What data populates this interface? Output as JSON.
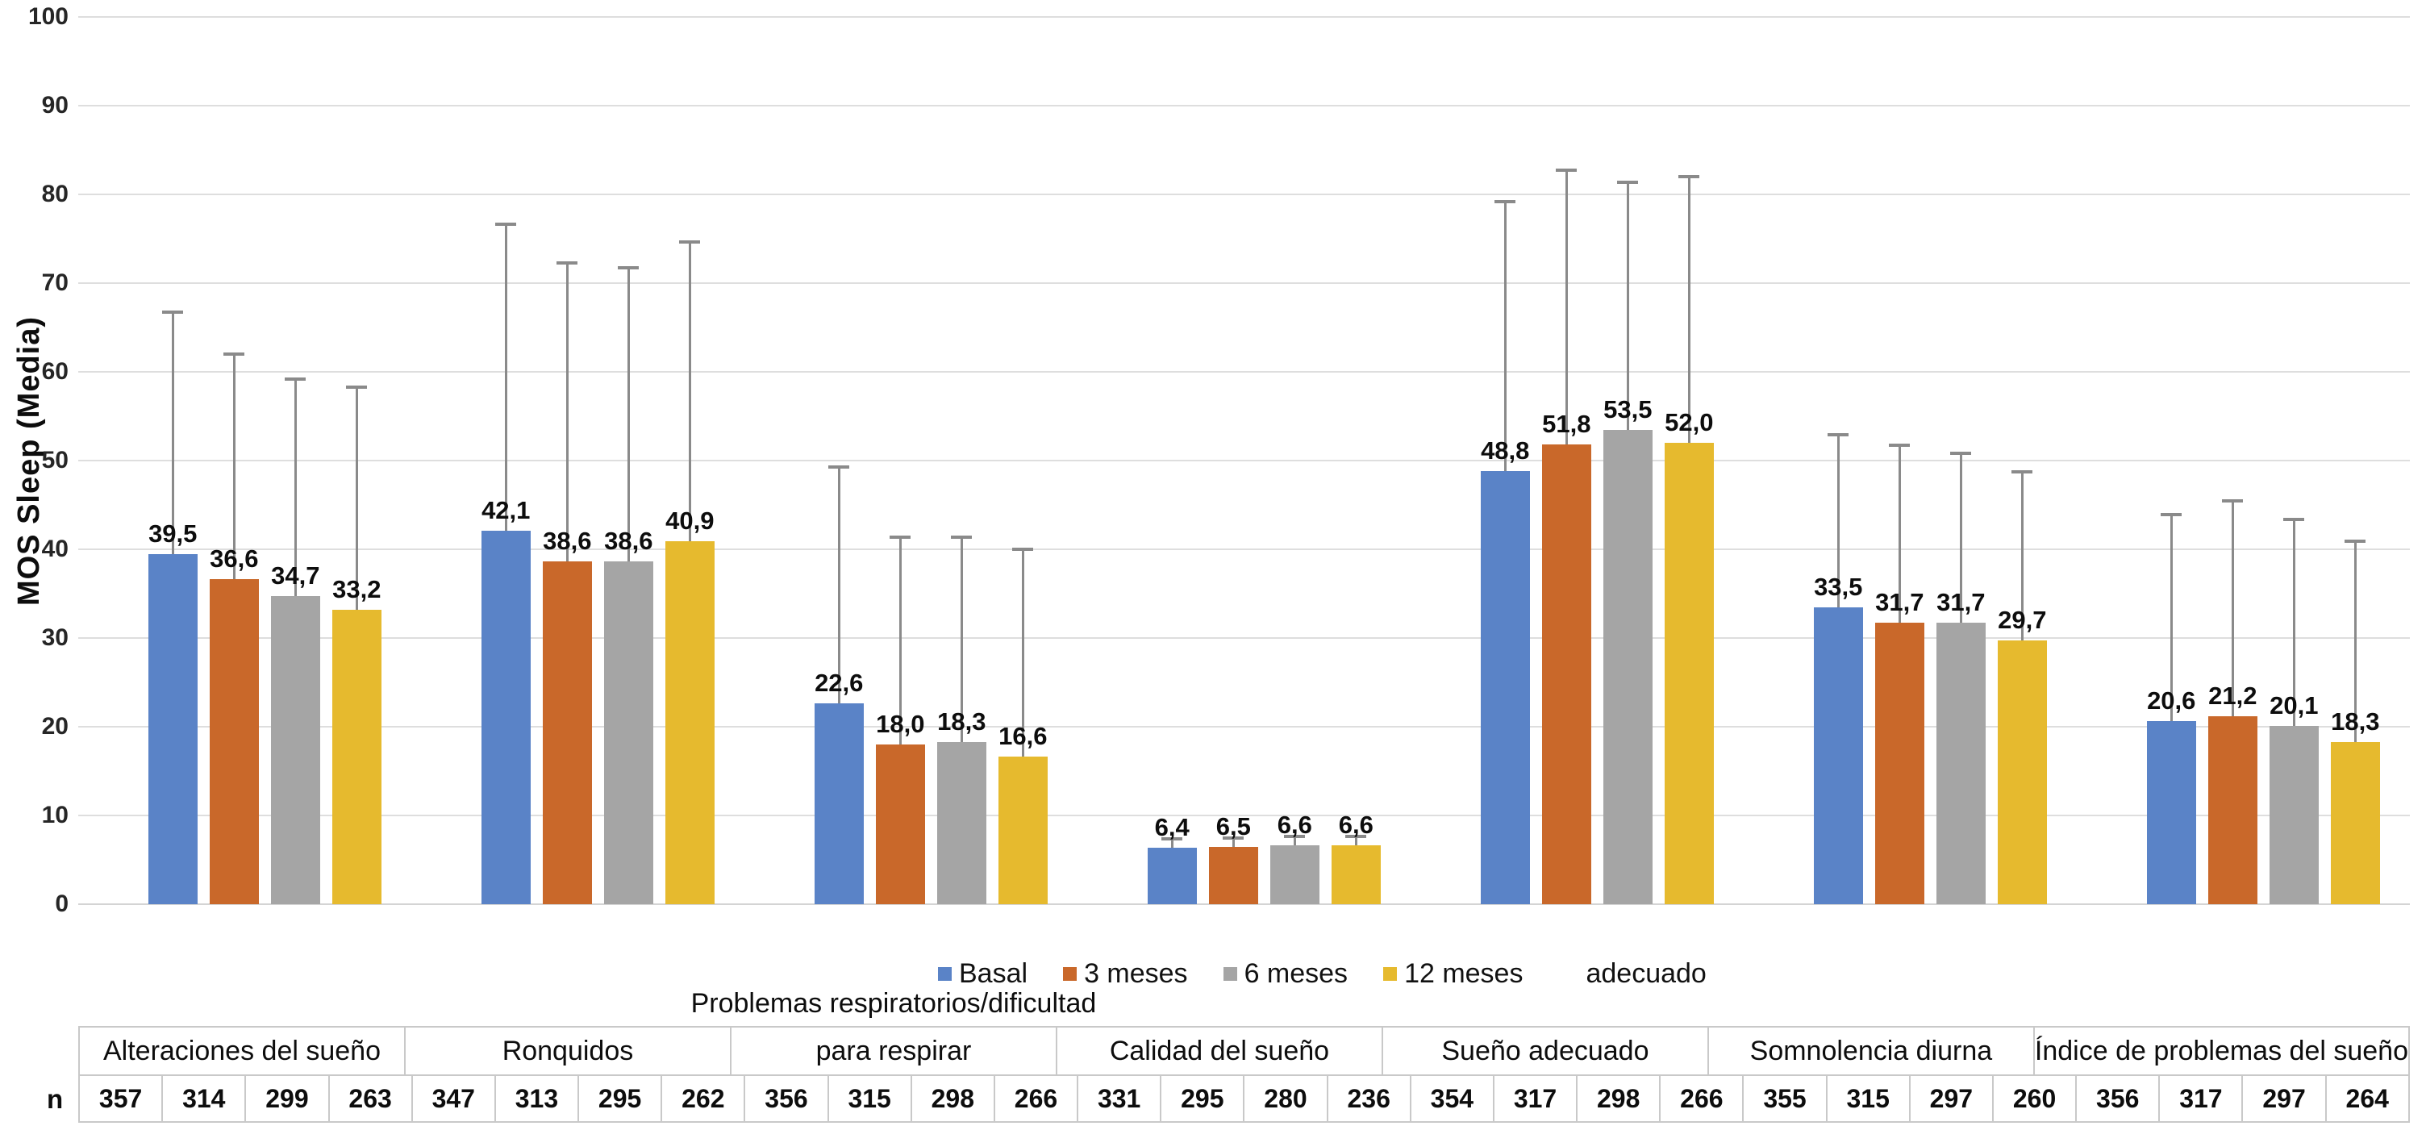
{
  "figure": {
    "y_axis_title": "MOS Sleep (Media)"
  },
  "legend": {
    "items": [
      "Basal",
      "3 meses",
      "6 meses",
      "12 meses"
    ],
    "stray_text": "adecuado"
  },
  "chart_data": {
    "type": "bar",
    "title": "",
    "xlabel": "",
    "ylabel": "MOS Sleep (Media)",
    "ylim": [
      0,
      100
    ],
    "ytick_step": 10,
    "grid": true,
    "legend_position": "bottom",
    "decimal_separator": ",",
    "error_bars": "upper-only",
    "categories": [
      "Alteraciones del sueño",
      "Ronquidos",
      "Problemas respiratorios/dificultad para respirar",
      "Calidad del sueño",
      "Sueño adecuado",
      "Somnolencia diurna",
      "Índice de problemas del sueño"
    ],
    "category_label_lines": [
      [
        "",
        "Alteraciones del sueño"
      ],
      [
        "",
        "Ronquidos"
      ],
      [
        "Problemas respiratorios/dificultad",
        "para respirar"
      ],
      [
        "",
        "Calidad del sueño"
      ],
      [
        "",
        "Sueño adecuado"
      ],
      [
        "",
        "Somnolencia diurna"
      ],
      [
        "",
        "Índice de problemas del sueño"
      ]
    ],
    "series": [
      {
        "name": "Basal",
        "color": "#5a83c7",
        "values": [
          39.5,
          42.1,
          22.6,
          6.4,
          48.8,
          33.5,
          20.6
        ],
        "error_top": [
          66.7,
          76.6,
          49.3,
          7.4,
          79.2,
          52.9,
          43.9
        ]
      },
      {
        "name": "3 meses",
        "color": "#c9682a",
        "values": [
          36.6,
          38.6,
          18.0,
          6.5,
          51.8,
          31.7,
          21.2
        ],
        "error_top": [
          62.0,
          72.3,
          41.4,
          7.5,
          82.7,
          51.7,
          45.5
        ]
      },
      {
        "name": "6 meses",
        "color": "#a5a5a5",
        "values": [
          34.7,
          38.6,
          18.3,
          6.6,
          53.5,
          31.7,
          20.1
        ],
        "error_top": [
          59.2,
          71.7,
          41.4,
          7.6,
          81.4,
          50.8,
          43.4
        ]
      },
      {
        "name": "12 meses",
        "color": "#e6ba2e",
        "values": [
          33.2,
          40.9,
          16.6,
          6.6,
          52.0,
          29.7,
          18.3
        ],
        "error_top": [
          58.3,
          74.6,
          40.0,
          7.6,
          82.0,
          48.7,
          40.9
        ]
      }
    ],
    "n_row": {
      "label": "n",
      "values": [
        [
          357,
          314,
          299,
          263
        ],
        [
          347,
          313,
          295,
          262
        ],
        [
          356,
          315,
          298,
          266
        ],
        [
          331,
          295,
          280,
          236
        ],
        [
          354,
          317,
          298,
          266
        ],
        [
          355,
          315,
          297,
          260
        ],
        [
          356,
          317,
          297,
          264
        ]
      ]
    },
    "colors": {
      "gridline": "#dedede",
      "error_bar": "#8a8a8a",
      "table_border": "#c9c9c9",
      "text": "#0d0d0d"
    }
  }
}
